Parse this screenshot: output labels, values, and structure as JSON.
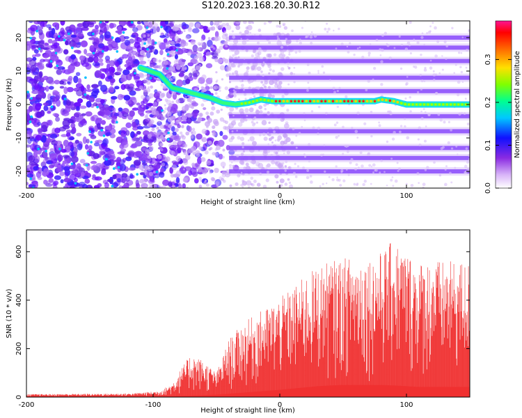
{
  "title": "S120.2023.168.20.30.R12",
  "chart_data": [
    {
      "type": "heatmap",
      "xlabel": "Height of straight line (km)",
      "ylabel": "Frequency (Hz)",
      "xlim": [
        -200,
        150
      ],
      "ylim": [
        -25,
        25
      ],
      "xticks": [
        "-200",
        "-100",
        "0",
        "100"
      ],
      "yticks": [
        "-20",
        "-10",
        "0",
        "10",
        "20"
      ],
      "colorbar": {
        "label": "Normalized spectral amplitude",
        "range": [
          0.0,
          0.39
        ],
        "ticks": [
          "0.0",
          "0.1",
          "0.2",
          "0.3"
        ]
      },
      "ridge": {
        "x": [
          -110,
          -95,
          -85,
          -75,
          -65,
          -55,
          -45,
          -35,
          -25,
          -15,
          -5,
          0,
          20,
          40,
          60,
          75,
          80,
          90,
          100,
          120,
          150
        ],
        "y": [
          11,
          9,
          5,
          4,
          3,
          2,
          0.5,
          0,
          0.5,
          1.5,
          1,
          1,
          1,
          1,
          1,
          1,
          1.5,
          1,
          0,
          0,
          0
        ]
      },
      "bands": [
        -20,
        -16,
        -13,
        -8,
        -3.5,
        4,
        8,
        13,
        17,
        20
      ]
    },
    {
      "type": "area",
      "xlabel": "Height of straight line (km)",
      "ylabel": "SNR (10 * v/v)",
      "xlim": [
        -200,
        150
      ],
      "ylim": [
        0,
        690
      ],
      "xticks": [
        "-200",
        "-100",
        "0",
        "100"
      ],
      "yticks": [
        "0",
        "200",
        "400",
        "600"
      ],
      "color": "#f03030",
      "envelope": {
        "x": [
          -200,
          -120,
          -95,
          -85,
          -80,
          -70,
          -60,
          -50,
          -40,
          -30,
          -20,
          -10,
          0,
          10,
          20,
          30,
          40,
          50,
          60,
          70,
          80,
          90,
          100,
          110,
          120,
          130,
          140,
          150
        ],
        "upper": [
          12,
          15,
          25,
          55,
          100,
          180,
          150,
          100,
          240,
          300,
          340,
          370,
          410,
          450,
          500,
          540,
          560,
          575,
          580,
          580,
          600,
          650,
          600,
          560,
          570,
          560,
          560,
          560
        ],
        "lower": [
          3,
          3,
          3,
          4,
          5,
          6,
          8,
          10,
          14,
          18,
          22,
          26,
          30,
          35,
          40,
          45,
          48,
          50,
          50,
          50,
          50,
          48,
          45,
          42,
          42,
          42,
          42,
          42
        ]
      }
    }
  ]
}
